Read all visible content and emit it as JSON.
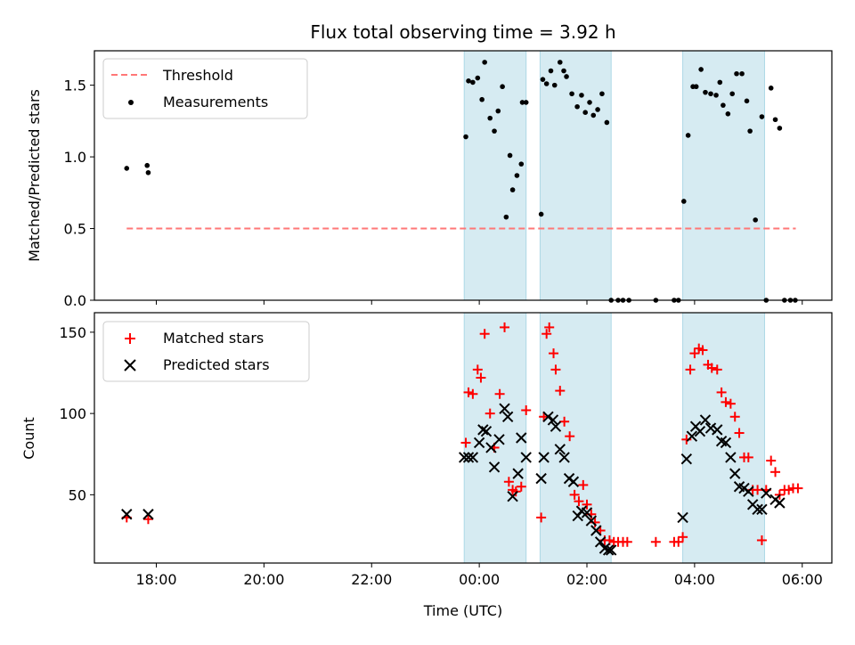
{
  "title": "Flux total observing time = 3.92 h",
  "colors": {
    "threshold": "#ff7777",
    "measurement": "#000000",
    "matched": "#ff0000",
    "predicted": "#000000",
    "band_fill": "#add8e6"
  },
  "chart_data": [
    {
      "type": "scatter",
      "title": "Flux total observing time = 3.92 h",
      "xlabel": "",
      "ylabel": "Matched/Predicted stars",
      "ylim": [
        0,
        1.74
      ],
      "yticks": [
        "0.0",
        "0.5",
        "1.0",
        "1.5"
      ],
      "xlim": [
        16.85,
        30.55
      ],
      "xticks": [
        "18:00",
        "20:00",
        "22:00",
        "00:00",
        "02:00",
        "04:00",
        "06:00"
      ],
      "legend": {
        "placement": "upper-left",
        "entries": [
          "Threshold",
          "Measurements"
        ]
      },
      "shaded_intervals_hours": [
        [
          23.72,
          24.87
        ],
        [
          25.13,
          26.45
        ],
        [
          27.78,
          29.3
        ]
      ],
      "threshold": {
        "name": "Threshold",
        "value": 0.5,
        "x_range_hours": [
          17.45,
          29.88
        ]
      },
      "series": [
        {
          "name": "Measurements",
          "x_hours": [
            17.45,
            17.83,
            17.85,
            23.75,
            23.8,
            23.88,
            23.97,
            24.05,
            24.1,
            24.2,
            24.28,
            24.35,
            24.43,
            24.5,
            24.57,
            24.62,
            24.7,
            24.78,
            24.8,
            24.87,
            25.15,
            25.18,
            25.25,
            25.33,
            25.4,
            25.5,
            25.57,
            25.62,
            25.72,
            25.82,
            25.9,
            25.97,
            26.05,
            26.12,
            26.2,
            26.28,
            26.37,
            26.45,
            26.58,
            26.67,
            26.78,
            27.28,
            27.62,
            27.7,
            27.8,
            27.88,
            27.97,
            28.03,
            28.12,
            28.2,
            28.3,
            28.4,
            28.47,
            28.53,
            28.62,
            28.7,
            28.78,
            28.88,
            28.97,
            29.03,
            29.13,
            29.25,
            29.33,
            29.42,
            29.5,
            29.58,
            29.67,
            29.78,
            29.87
          ],
          "y": [
            0.92,
            0.94,
            0.89,
            1.14,
            1.53,
            1.52,
            1.55,
            1.4,
            1.66,
            1.27,
            1.18,
            1.32,
            1.49,
            0.58,
            1.01,
            0.77,
            0.87,
            0.95,
            1.38,
            1.38,
            0.6,
            1.54,
            1.51,
            1.6,
            1.5,
            1.66,
            1.6,
            1.56,
            1.44,
            1.35,
            1.43,
            1.31,
            1.38,
            1.29,
            1.33,
            1.44,
            1.24,
            0.0,
            0.0,
            0.0,
            0.0,
            0.0,
            0.0,
            0.0,
            0.69,
            1.15,
            1.49,
            1.49,
            1.61,
            1.45,
            1.44,
            1.43,
            1.52,
            1.36,
            1.3,
            1.44,
            1.58,
            1.58,
            1.39,
            1.18,
            0.56,
            1.28,
            0.0,
            1.48,
            1.26,
            1.2,
            0.0,
            0.0,
            0.0
          ]
        }
      ]
    },
    {
      "type": "scatter",
      "title": "",
      "xlabel": "Time (UTC)",
      "ylabel": "Count",
      "ylim": [
        8,
        162
      ],
      "yticks": [
        "50",
        "100",
        "150"
      ],
      "xlim": [
        16.85,
        30.55
      ],
      "xticks": [
        "18:00",
        "20:00",
        "22:00",
        "00:00",
        "02:00",
        "04:00",
        "06:00"
      ],
      "legend": {
        "placement": "upper-left",
        "entries": [
          "Matched stars",
          "Predicted stars"
        ]
      },
      "shaded_intervals_hours": [
        [
          23.72,
          24.87
        ],
        [
          25.13,
          26.45
        ],
        [
          27.78,
          29.3
        ]
      ],
      "series": [
        {
          "name": "Matched stars",
          "marker": "plus",
          "x_hours": [
            17.45,
            17.85,
            23.75,
            23.8,
            23.88,
            23.97,
            24.03,
            24.1,
            24.2,
            24.28,
            24.38,
            24.47,
            24.55,
            24.62,
            24.68,
            24.78,
            24.87,
            25.15,
            25.2,
            25.25,
            25.3,
            25.38,
            25.42,
            25.5,
            25.58,
            25.68,
            25.77,
            25.85,
            25.93,
            26.0,
            26.08,
            26.15,
            26.25,
            26.33,
            26.42,
            26.5,
            26.58,
            26.67,
            26.75,
            27.28,
            27.62,
            27.7,
            27.78,
            27.85,
            27.92,
            28.0,
            28.08,
            28.15,
            28.25,
            28.32,
            28.42,
            28.5,
            28.58,
            28.67,
            28.75,
            28.83,
            28.92,
            29.0,
            29.08,
            29.17,
            29.25,
            29.33,
            29.42,
            29.5,
            29.58,
            29.67,
            29.75,
            29.83,
            29.92
          ],
          "y": [
            36,
            35,
            82,
            113,
            112,
            127,
            122,
            149,
            100,
            79,
            112,
            153,
            58,
            53,
            52,
            55,
            102,
            36,
            98,
            149,
            153,
            137,
            127,
            114,
            95,
            86,
            50,
            46,
            56,
            44,
            38,
            33,
            28,
            22,
            22,
            21,
            21,
            21,
            21,
            21,
            21,
            21,
            24,
            84,
            127,
            137,
            140,
            139,
            130,
            128,
            127,
            113,
            107,
            106,
            98,
            88,
            73,
            73,
            53,
            53,
            22,
            53,
            71,
            64,
            50,
            53,
            53,
            54,
            54
          ]
        },
        {
          "name": "Predicted stars",
          "marker": "x",
          "x_hours": [
            17.45,
            17.85,
            23.72,
            23.8,
            23.88,
            24.0,
            24.07,
            24.13,
            24.22,
            24.28,
            24.37,
            24.47,
            24.53,
            24.62,
            24.72,
            24.78,
            24.87,
            25.15,
            25.2,
            25.28,
            25.37,
            25.42,
            25.5,
            25.58,
            25.67,
            25.75,
            25.83,
            25.9,
            26.0,
            26.08,
            26.17,
            26.25,
            26.33,
            26.4,
            26.45,
            27.78,
            27.85,
            27.95,
            28.02,
            28.1,
            28.2,
            28.3,
            28.42,
            28.5,
            28.58,
            28.67,
            28.75,
            28.83,
            28.92,
            29.0,
            29.08,
            29.17,
            29.25,
            29.33,
            29.5,
            29.58
          ],
          "y": [
            38,
            38,
            73,
            73,
            73,
            82,
            90,
            89,
            79,
            67,
            84,
            103,
            98,
            49,
            63,
            85,
            73,
            60,
            73,
            98,
            96,
            92,
            78,
            73,
            60,
            58,
            37,
            40,
            39,
            34,
            28,
            21,
            17,
            16,
            16,
            36,
            72,
            86,
            92,
            89,
            96,
            91,
            90,
            83,
            82,
            73,
            63,
            55,
            54,
            52,
            44,
            41,
            41,
            51,
            47,
            45
          ]
        }
      ]
    }
  ]
}
